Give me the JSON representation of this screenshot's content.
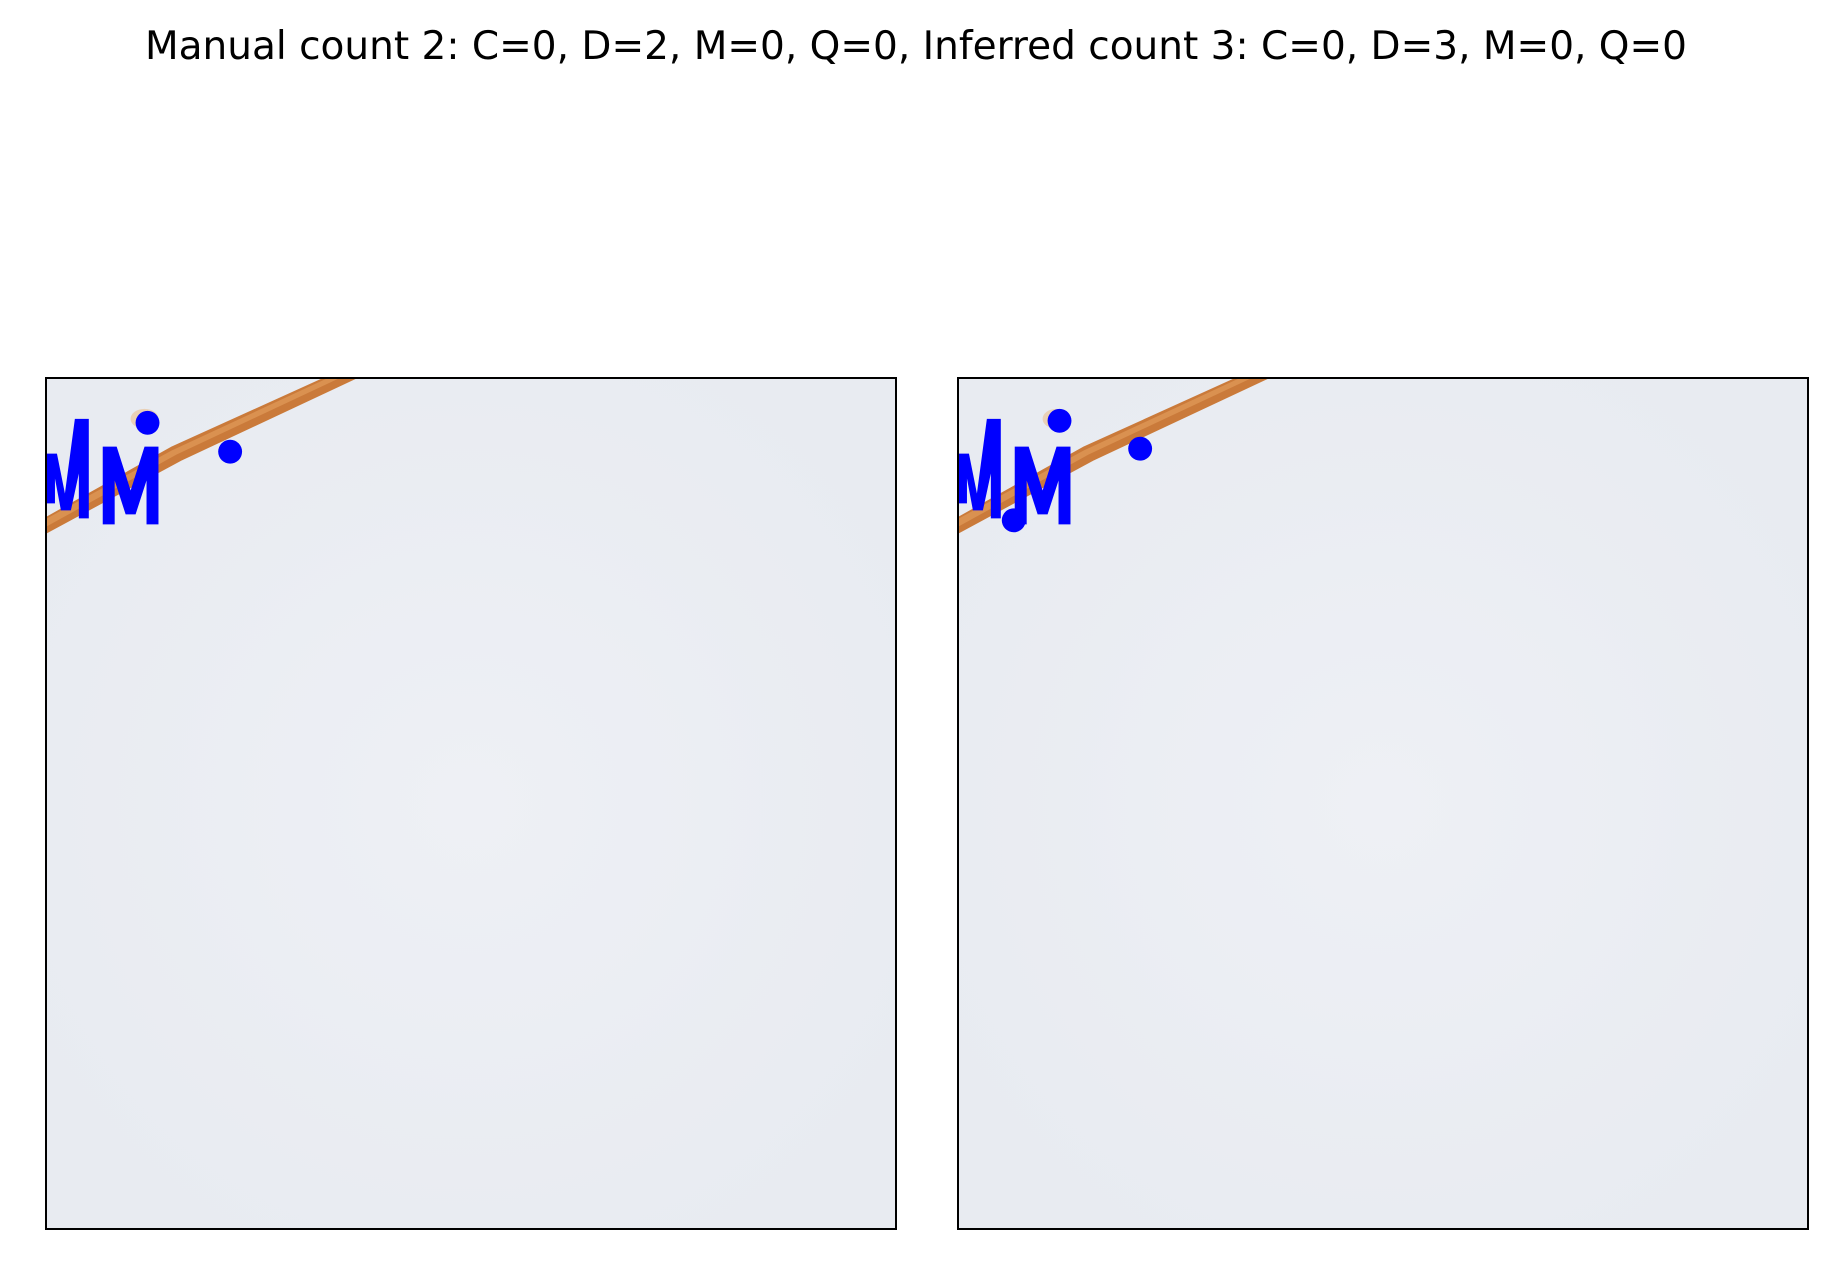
{
  "figure": {
    "title": "Manual count  2: C=0, D=2, M=0, Q=0, Inferred count 3: C=0, D=3, M=0, Q=0"
  },
  "panels": [
    {
      "name": "manual",
      "image_subject": "microscopy field with orange fibre and blue annotation markers"
    },
    {
      "name": "inferred",
      "image_subject": "microscopy field with orange fibre and blue annotation markers"
    }
  ],
  "colors": {
    "background_field": "#eceef3",
    "fibre": "#c8742f",
    "marker": "#0000ff",
    "frame": "#000000"
  }
}
